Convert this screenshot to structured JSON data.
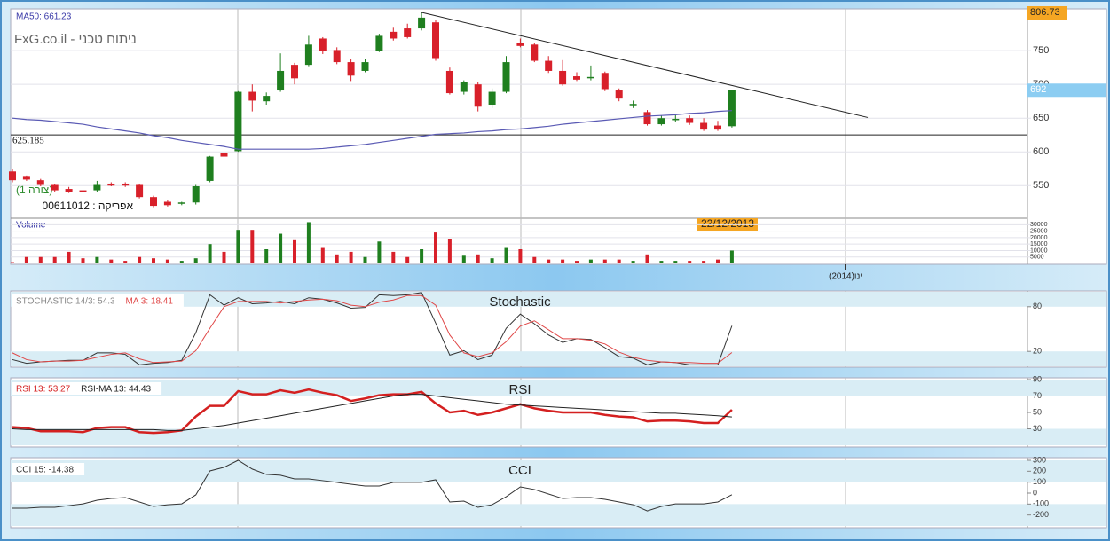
{
  "chart_data": [
    {
      "type": "candlestick",
      "title": "FxG.co.il - ניתוח טכני",
      "subtitle": "אפריקה : 00611012",
      "annotation": "(צורה 1)",
      "open": [
        571,
        563,
        558,
        551,
        545,
        543,
        543,
        553,
        553,
        551,
        533,
        526,
        524,
        525,
        557,
        599,
        601,
        689,
        675,
        691,
        729,
        729,
        768,
        751,
        733,
        720,
        750,
        778,
        783,
        783,
        792,
        720,
        689,
        700,
        670,
        689,
        762,
        759,
        735,
        720,
        712,
        710,
        717,
        691,
        670,
        659,
        641,
        648,
        650,
        643,
        639,
        638
      ],
      "high": [
        574,
        565,
        560,
        553,
        548,
        546,
        557,
        555,
        555,
        553,
        535,
        528,
        526,
        551,
        594,
        606,
        690,
        700,
        688,
        746,
        732,
        772,
        770,
        755,
        737,
        738,
        775,
        784,
        790,
        806.73,
        796,
        725,
        706,
        703,
        694,
        742,
        768,
        762,
        742,
        736,
        718,
        728,
        719,
        694,
        676,
        662,
        654,
        656,
        654,
        650,
        646,
        692
      ],
      "low": [
        555,
        557,
        549,
        541,
        539,
        539,
        541,
        549,
        548,
        531,
        518,
        519,
        521,
        522,
        555,
        583,
        600,
        660,
        670,
        689,
        700,
        727,
        745,
        730,
        705,
        718,
        748,
        765,
        768,
        780,
        735,
        685,
        685,
        660,
        665,
        687,
        755,
        733,
        717,
        698,
        705,
        706,
        690,
        675,
        665,
        639,
        639,
        644,
        640,
        631,
        631,
        636
      ],
      "close": [
        558,
        559,
        551,
        543,
        541,
        541,
        551,
        550,
        550,
        533,
        520,
        521,
        525,
        549,
        593,
        593,
        689,
        676,
        683,
        720,
        709,
        759,
        750,
        733,
        713,
        733,
        772,
        768,
        770,
        799,
        739,
        687,
        704,
        667,
        689,
        733,
        757,
        735,
        720,
        700,
        707,
        711,
        693,
        679,
        671,
        641,
        650,
        649,
        643,
        633,
        633,
        692
      ],
      "up_color": "#1f7f1f",
      "down_color": "#d8202a",
      "ma": {
        "name": "MA50: 661.23",
        "color": "#5a5ab4",
        "values": [
          650,
          648,
          647,
          645,
          643,
          641,
          637,
          634,
          631,
          628,
          624,
          621,
          617,
          614,
          611,
          608,
          604,
          604,
          604,
          604,
          604,
          604,
          605,
          607,
          609,
          611,
          614,
          617,
          620,
          623,
          626,
          627,
          628,
          630,
          631,
          633,
          634,
          636,
          638,
          641,
          643,
          645,
          647,
          649,
          651,
          653,
          654,
          655,
          657,
          658,
          660,
          661.23
        ]
      },
      "hline": 625.185,
      "trendline": [
        806.73,
        651
      ],
      "high_label": 806.73,
      "last_label": 692,
      "ylim": [
        503,
        812
      ],
      "yticks": [
        550,
        600,
        650,
        700,
        750
      ],
      "grid": true
    },
    {
      "type": "bar",
      "title": "Volume",
      "date_label": "22/12/2013",
      "x_label": "(2014)ינו",
      "values": [
        1000,
        5000,
        5000,
        5000,
        9000,
        4000,
        5000,
        3000,
        2000,
        5000,
        4000,
        3000,
        2000,
        4000,
        15000,
        9000,
        26000,
        26000,
        11000,
        23000,
        18000,
        32000,
        12000,
        7000,
        9000,
        5000,
        17000,
        9000,
        5000,
        11000,
        24000,
        19000,
        6000,
        7000,
        4000,
        12000,
        11000,
        5000,
        3000,
        3000,
        2000,
        3000,
        3000,
        3000,
        2000,
        7000,
        2000,
        2000,
        2000,
        2000,
        3000,
        10000
      ],
      "ylim": [
        0,
        33000
      ],
      "yticks": [
        5000,
        10000,
        15000,
        20000,
        25000,
        30000
      ],
      "grid": true
    },
    {
      "type": "line",
      "title": "Stochastic",
      "series": [
        {
          "name": "STOCHASTIC 14/3: 54.3",
          "color": "#333333",
          "width": 1,
          "values": [
            9,
            4,
            6,
            7,
            8,
            8,
            18,
            18,
            16,
            2,
            4,
            5,
            8,
            45,
            96,
            82,
            92,
            84,
            85,
            87,
            84,
            92,
            90,
            85,
            78,
            79,
            96,
            95,
            96,
            99,
            58,
            15,
            21,
            9,
            15,
            51,
            70,
            57,
            42,
            32,
            37,
            36,
            25,
            13,
            11,
            2,
            6,
            5,
            2,
            2,
            2,
            54.3
          ]
        },
        {
          "name": "MA 3: 18.41",
          "color": "#e04848",
          "width": 1,
          "values": [
            18,
            9,
            6,
            7,
            7,
            8,
            12,
            16,
            18,
            10,
            5,
            6,
            7,
            21,
            51,
            80,
            87,
            87,
            87,
            85,
            87,
            89,
            90,
            88,
            82,
            80,
            86,
            89,
            95,
            95,
            82,
            42,
            18,
            13,
            18,
            33,
            54,
            61,
            49,
            37,
            37,
            35,
            30,
            19,
            12,
            8,
            6,
            5,
            5,
            4,
            4,
            18.41
          ]
        }
      ],
      "ylim": [
        0,
        100
      ],
      "yticks": [
        20,
        80
      ],
      "bands": [
        [
          0,
          20
        ],
        [
          80,
          100
        ]
      ]
    },
    {
      "type": "line",
      "title": "RSI",
      "series": [
        {
          "name": "RSI 13: 53.27",
          "color": "#d42020",
          "width": 2.5,
          "values": [
            32,
            31,
            27,
            27,
            27,
            26,
            31,
            32,
            32,
            26,
            25,
            26,
            28,
            45,
            58,
            58,
            76,
            72,
            72,
            77,
            74,
            78,
            74,
            71,
            64,
            67,
            71,
            72,
            72,
            75,
            61,
            50,
            52,
            47,
            50,
            55,
            60,
            55,
            52,
            50,
            50,
            50,
            47,
            45,
            44,
            39,
            40,
            40,
            39,
            37,
            37,
            53.27
          ]
        },
        {
          "name": "RSI-MA 13: 44.43",
          "color": "#222222",
          "width": 1,
          "values": [
            30,
            29,
            29,
            29,
            29,
            29,
            29,
            29,
            29,
            29,
            29,
            28,
            28,
            30,
            32,
            34,
            37,
            40,
            43,
            46,
            49,
            52,
            55,
            58,
            61,
            64,
            67,
            70,
            72,
            72,
            70,
            68,
            66,
            64,
            62,
            60,
            59,
            58,
            57,
            56,
            55,
            54,
            53,
            52,
            51,
            50,
            49,
            49,
            48,
            47,
            46,
            44.43
          ]
        }
      ],
      "ylim": [
        10,
        90
      ],
      "yticks": [
        30,
        50,
        70,
        90
      ],
      "bands": [
        [
          10,
          30
        ],
        [
          70,
          90
        ]
      ]
    },
    {
      "type": "line",
      "title": "CCI",
      "series": [
        {
          "name": "CCI 15: -14.38",
          "color": "#333333",
          "width": 1,
          "values": [
            -138,
            -138,
            -130,
            -130,
            -114,
            -98,
            -65,
            -49,
            -41,
            -81,
            -122,
            -106,
            -98,
            -16,
            203,
            236,
            300,
            220,
            171,
            163,
            130,
            130,
            114,
            98,
            81,
            65,
            65,
            98,
            98,
            98,
            122,
            -81,
            -73,
            -130,
            -106,
            -33,
            57,
            33,
            -8,
            -49,
            -41,
            -41,
            -57,
            -81,
            -106,
            -163,
            -122,
            -98,
            -98,
            -98,
            -81,
            -14.38
          ]
        }
      ],
      "ylim": [
        -300,
        300
      ],
      "yticks": [
        -200,
        -100,
        0,
        100,
        200,
        300
      ],
      "bands": [
        [
          -300,
          -100
        ],
        [
          100,
          300
        ]
      ]
    }
  ]
}
